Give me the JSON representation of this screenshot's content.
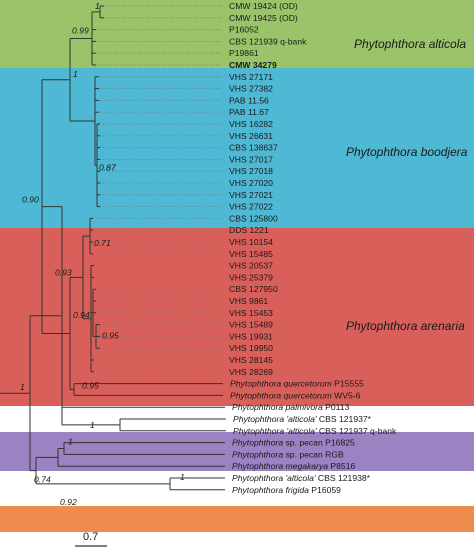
{
  "colors": {
    "alticola_band": "#9bc46a",
    "boodjera_band": "#4fb8d4",
    "arenaria_band": "#d95f5a",
    "palmivora_band": "#9b82c2",
    "frigida_band": "#ee8c4e",
    "branch": "#333333",
    "dotted": "#777777"
  },
  "clades": {
    "alticola": "Phytophthora alticola",
    "boodjera": "Phytophthora boodjera",
    "arenaria": "Phytophthora arenaria"
  },
  "leaves": [
    {
      "segments": [
        {
          "t": "CMW 19424 (OD)"
        }
      ]
    },
    {
      "segments": [
        {
          "t": "CMW 19425 (OD)"
        }
      ]
    },
    {
      "segments": [
        {
          "t": "P16052"
        }
      ]
    },
    {
      "segments": [
        {
          "t": "CBS 121939 q-bank"
        }
      ]
    },
    {
      "segments": [
        {
          "t": "P19861"
        }
      ]
    },
    {
      "segments": [
        {
          "t": "CMW 34279",
          "b": true
        }
      ]
    },
    {
      "segments": [
        {
          "t": "VHS 27171"
        }
      ]
    },
    {
      "segments": [
        {
          "t": "VHS 27382"
        }
      ]
    },
    {
      "segments": [
        {
          "t": "PAB 11.56"
        }
      ]
    },
    {
      "segments": [
        {
          "t": "PAB 11.67"
        }
      ]
    },
    {
      "segments": [
        {
          "t": "VHS 16282"
        }
      ]
    },
    {
      "segments": [
        {
          "t": "VHS 26631"
        }
      ]
    },
    {
      "segments": [
        {
          "t": "CBS 138637"
        }
      ]
    },
    {
      "segments": [
        {
          "t": "VHS 27017"
        }
      ]
    },
    {
      "segments": [
        {
          "t": "VHS 27018"
        }
      ]
    },
    {
      "segments": [
        {
          "t": "VHS 27020"
        }
      ]
    },
    {
      "segments": [
        {
          "t": "VHS 27021"
        }
      ]
    },
    {
      "segments": [
        {
          "t": "VHS 27022"
        }
      ]
    },
    {
      "segments": [
        {
          "t": "CBS 125800"
        }
      ]
    },
    {
      "segments": [
        {
          "t": "DDS 1221"
        }
      ]
    },
    {
      "segments": [
        {
          "t": "VHS 10154"
        }
      ]
    },
    {
      "segments": [
        {
          "t": "VHS 15485"
        }
      ]
    },
    {
      "segments": [
        {
          "t": "VHS 20537"
        }
      ]
    },
    {
      "segments": [
        {
          "t": "VHS 25379"
        }
      ]
    },
    {
      "segments": [
        {
          "t": "CBS 127950"
        }
      ]
    },
    {
      "segments": [
        {
          "t": "VHS 9861"
        }
      ]
    },
    {
      "segments": [
        {
          "t": "VHS 15453"
        }
      ]
    },
    {
      "segments": [
        {
          "t": "VHS 15489"
        }
      ]
    },
    {
      "segments": [
        {
          "t": "VHS 19931"
        }
      ]
    },
    {
      "segments": [
        {
          "t": "VHS 19950"
        }
      ]
    },
    {
      "segments": [
        {
          "t": "VHS 28145"
        }
      ]
    },
    {
      "segments": [
        {
          "t": "VHS 28269"
        }
      ]
    },
    {
      "segments": [
        {
          "t": "Phytophthora quercetorum",
          "i": true
        },
        {
          "t": " P15555"
        }
      ]
    },
    {
      "segments": [
        {
          "t": "Phytophthora quercetorum",
          "i": true
        },
        {
          "t": " WV5-6"
        }
      ]
    },
    {
      "segments": [
        {
          "t": "Phytophthora palmivora",
          "i": true
        },
        {
          "t": " P0113"
        }
      ]
    },
    {
      "segments": [
        {
          "t": "Phytophthora 'alticola'",
          "i": true
        },
        {
          "t": " CBS 121937*"
        }
      ]
    },
    {
      "segments": [
        {
          "t": "Phytophthora 'alticola'",
          "i": true
        },
        {
          "t": " CBS 121937 q-bank"
        }
      ]
    },
    {
      "segments": [
        {
          "t": "Phytophthora",
          "i": true
        },
        {
          "t": " sp. pecan P16825"
        }
      ]
    },
    {
      "segments": [
        {
          "t": "Phytophthora",
          "i": true
        },
        {
          "t": " sp. pecan RGB"
        }
      ]
    },
    {
      "segments": [
        {
          "t": "Phytophthora megakarya",
          "i": true
        },
        {
          "t": " P8516"
        }
      ]
    },
    {
      "segments": [
        {
          "t": "Phytophthora 'alticola'",
          "i": true
        },
        {
          "t": " CBS 121938*"
        }
      ]
    },
    {
      "segments": [
        {
          "t": "Phytophthora frigida",
          "i": true
        },
        {
          "t": " P16059"
        }
      ]
    }
  ],
  "supports": [
    "1",
    "0.99",
    "0.87",
    "1",
    "0.71",
    "0.93",
    "0.94",
    "0.95",
    "0.90",
    "0.95",
    "1",
    "1",
    "1",
    "0.92",
    "0.74",
    "1"
  ],
  "scale_bar": "0.7"
}
